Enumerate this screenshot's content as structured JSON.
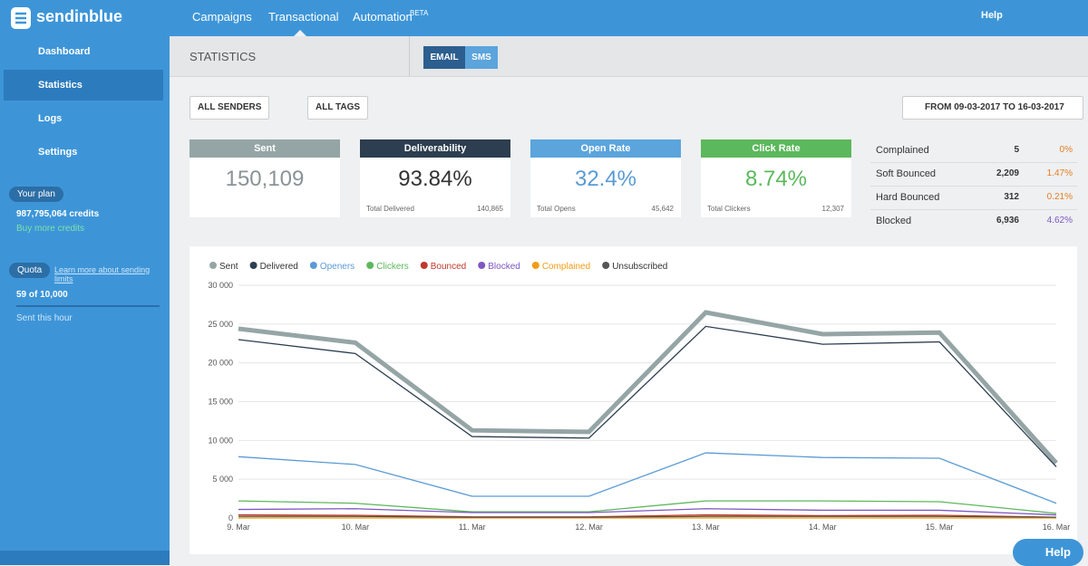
{
  "header": {
    "logo": "sendinblue",
    "nav": [
      "Campaigns",
      "Transactional",
      "Automation"
    ],
    "nav_sup": "BETA",
    "help": "Help"
  },
  "sidebar": {
    "menu": [
      "Dashboard",
      "Statistics",
      "Logs",
      "Settings"
    ],
    "plan_label": "Your plan",
    "credits": "987,795,064 credits",
    "buy": "Buy more credits",
    "quota_label": "Quota",
    "quota_link": "Learn more about sending limits",
    "quota_value": "59 of 10,000",
    "quota_note": "Sent this hour"
  },
  "page": {
    "title": "STATISTICS",
    "tabs": [
      "EMAIL",
      "SMS"
    ],
    "filters": [
      "ALL SENDERS",
      "ALL TAGS"
    ],
    "date_range": "FROM 09-03-2017 TO 16-03-2017"
  },
  "cards": [
    {
      "title": "Sent",
      "value": "150,109",
      "color": "#95a5a6",
      "value_color": "#8a9396"
    },
    {
      "title": "Deliverability",
      "value": "93.84%",
      "foot_label": "Total Delivered",
      "foot_value": "140,865",
      "color": "#2c3e50",
      "value_color": "#333333"
    },
    {
      "title": "Open Rate",
      "value": "32.4%",
      "foot_label": "Total Opens",
      "foot_value": "45,642",
      "color": "#5ba4dc",
      "value_color": "#5b9bd5"
    },
    {
      "title": "Click Rate",
      "value": "8.74%",
      "foot_label": "Total Clickers",
      "foot_value": "12,307",
      "color": "#5cb85c",
      "value_color": "#5cb85c"
    }
  ],
  "side_stats": [
    {
      "label": "Complained",
      "value": "5",
      "rate": "0%",
      "color": "#e67e22"
    },
    {
      "label": "Soft Bounced",
      "value": "2,209",
      "rate": "1.47%",
      "color": "#e67e22"
    },
    {
      "label": "Hard Bounced",
      "value": "312",
      "rate": "0.21%",
      "color": "#e67e22"
    },
    {
      "label": "Blocked",
      "value": "6,936",
      "rate": "4.62%",
      "color": "#7e57c2"
    }
  ],
  "chart_data": {
    "type": "line",
    "categories": [
      "9. Mar",
      "10. Mar",
      "11. Mar",
      "12. Mar",
      "13. Mar",
      "14. Mar",
      "15. Mar",
      "16. Mar"
    ],
    "series": [
      {
        "name": "Sent",
        "color": "#95a5a6",
        "values": [
          24400,
          22600,
          11300,
          11100,
          26500,
          23700,
          23900,
          7100
        ]
      },
      {
        "name": "Delivered",
        "color": "#2c3e50",
        "values": [
          23000,
          21200,
          10500,
          10300,
          24700,
          22400,
          22700,
          6600
        ]
      },
      {
        "name": "Openers",
        "color": "#5b9bd5",
        "values": [
          7900,
          6900,
          2800,
          2800,
          8400,
          7800,
          7700,
          1900
        ]
      },
      {
        "name": "Clickers",
        "color": "#5cb85c",
        "values": [
          2200,
          1900,
          800,
          800,
          2200,
          2200,
          2100,
          600
        ]
      },
      {
        "name": "Bounced",
        "color": "#c0392b",
        "values": [
          400,
          350,
          150,
          150,
          400,
          300,
          350,
          100
        ]
      },
      {
        "name": "Blocked",
        "color": "#7e57c2",
        "values": [
          1100,
          1200,
          700,
          700,
          1200,
          1000,
          1000,
          400
        ]
      },
      {
        "name": "Complained",
        "color": "#f39c12",
        "values": [
          10,
          10,
          5,
          5,
          10,
          10,
          10,
          5
        ]
      },
      {
        "name": "Unsubscribed",
        "color": "#555555",
        "values": [
          200,
          200,
          100,
          100,
          200,
          200,
          200,
          100
        ]
      }
    ],
    "ylim": [
      0,
      30000
    ],
    "yticks": [
      0,
      {
        "value": 5000,
        "label": "5 000"
      },
      {
        "value": 10000,
        "label": "10 000"
      },
      {
        "value": 15000,
        "label": "15 000"
      },
      {
        "value": 20000,
        "label": "20 000"
      },
      {
        "value": 25000,
        "label": "25 000"
      },
      {
        "value": 30000,
        "label": "30 000"
      }
    ],
    "grid": true
  },
  "help_button": "Help"
}
